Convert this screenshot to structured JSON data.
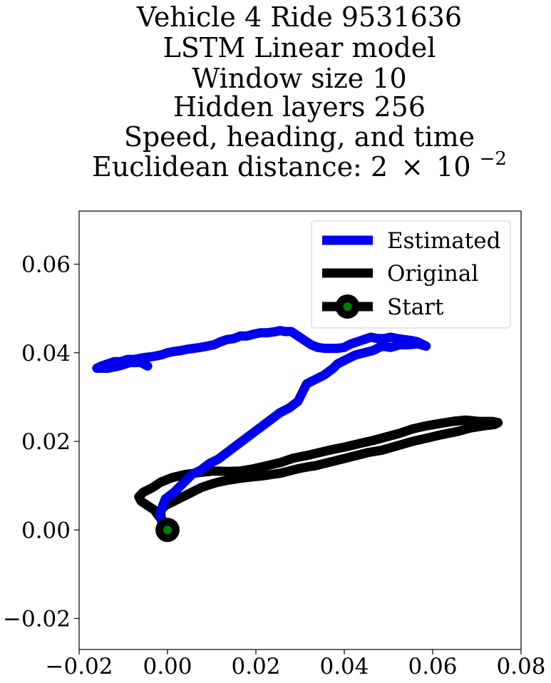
{
  "chart_data": {
    "type": "line",
    "title_lines": [
      "Vehicle 4 Ride 9531636",
      "LSTM Linear model",
      "Window size 10",
      "Hidden layers 256",
      "Speed, heading, and time"
    ],
    "title_last_prefix": "Euclidean distance: 2",
    "title_last_times": "×",
    "title_last_base": "10",
    "title_last_exponent": "−2",
    "xlabel": "",
    "ylabel": "",
    "xlim": [
      -0.02,
      0.08
    ],
    "ylim": [
      -0.027,
      0.072
    ],
    "xticks": [
      -0.02,
      0.0,
      0.02,
      0.04,
      0.06,
      0.08
    ],
    "xtick_labels": [
      "−0.02",
      "0.00",
      "0.02",
      "0.04",
      "0.06",
      "0.08"
    ],
    "yticks": [
      -0.02,
      0.0,
      0.02,
      0.04,
      0.06
    ],
    "ytick_labels": [
      "−0.02",
      "0.00",
      "0.02",
      "0.04",
      "0.06"
    ],
    "grid": false,
    "legend_position": "top-right",
    "series": [
      {
        "name": "Estimated",
        "color": "#0000ee",
        "x": [
          0.0,
          -0.0012,
          -0.0018,
          -0.0005,
          0.0015,
          0.0035,
          0.0055,
          0.0075,
          0.0095,
          0.0115,
          0.0135,
          0.0155,
          0.0175,
          0.0195,
          0.0215,
          0.0235,
          0.0255,
          0.0275,
          0.0295,
          0.0315,
          0.0335,
          0.0355,
          0.0375,
          0.0385,
          0.0395,
          0.0405,
          0.0425,
          0.0445,
          0.0465,
          0.0485,
          0.0505,
          0.0525,
          0.0545,
          0.0565,
          0.0575,
          0.0585,
          0.0565,
          0.055,
          0.0535,
          0.052,
          0.0505,
          0.049,
          0.0475,
          0.046,
          0.0445,
          0.043,
          0.0415,
          0.04,
          0.0385,
          0.037,
          0.0355,
          0.034,
          0.0325,
          0.031,
          0.0295,
          0.028,
          0.0265,
          0.0255,
          0.024,
          0.0225,
          0.021,
          0.0195,
          0.018,
          0.0165,
          0.015,
          0.0135,
          0.012,
          0.0105,
          0.009,
          0.0075,
          0.006,
          0.0045,
          0.003,
          0.0015,
          0.0,
          -0.0015,
          -0.003,
          -0.0045,
          -0.006,
          -0.0075,
          -0.009,
          -0.0105,
          -0.012,
          -0.0135,
          -0.015,
          -0.016,
          -0.0135,
          -0.011,
          -0.0085,
          -0.006,
          -0.0045
        ],
        "y": [
          0.0,
          0.0015,
          0.0035,
          0.007,
          0.0085,
          0.0105,
          0.0125,
          0.0135,
          0.015,
          0.016,
          0.0175,
          0.019,
          0.0205,
          0.022,
          0.0235,
          0.025,
          0.0265,
          0.0275,
          0.029,
          0.033,
          0.034,
          0.035,
          0.0365,
          0.0375,
          0.038,
          0.0385,
          0.0395,
          0.04,
          0.0405,
          0.0415,
          0.0412,
          0.0418,
          0.0418,
          0.042,
          0.0418,
          0.0415,
          0.0425,
          0.0428,
          0.043,
          0.0432,
          0.0435,
          0.0432,
          0.0432,
          0.0435,
          0.043,
          0.0425,
          0.042,
          0.0412,
          0.041,
          0.041,
          0.041,
          0.0412,
          0.0418,
          0.0428,
          0.0438,
          0.0448,
          0.0448,
          0.045,
          0.0447,
          0.0445,
          0.0445,
          0.0442,
          0.0438,
          0.0438,
          0.0432,
          0.043,
          0.0425,
          0.0418,
          0.0415,
          0.0412,
          0.041,
          0.0408,
          0.0405,
          0.0403,
          0.04,
          0.0395,
          0.0392,
          0.039,
          0.0388,
          0.0385,
          0.0385,
          0.038,
          0.038,
          0.0375,
          0.037,
          0.0365,
          0.0365,
          0.037,
          0.0378,
          0.0378,
          0.037
        ]
      },
      {
        "name": "Original",
        "color": "#000000",
        "x": [
          0.0,
          -0.0015,
          -0.003,
          -0.0045,
          -0.006,
          -0.0065,
          -0.0055,
          -0.0035,
          -0.0015,
          0.001,
          0.004,
          0.0075,
          0.0105,
          0.0135,
          0.0165,
          0.0195,
          0.0225,
          0.0255,
          0.0285,
          0.0315,
          0.0345,
          0.0375,
          0.0405,
          0.0435,
          0.0465,
          0.0495,
          0.0525,
          0.0555,
          0.0585,
          0.0615,
          0.0645,
          0.0675,
          0.0705,
          0.0735,
          0.0748,
          0.074,
          0.0715,
          0.0685,
          0.0655,
          0.062,
          0.059,
          0.0555,
          0.052,
          0.0485,
          0.0455,
          0.0435,
          0.0415,
          0.0395,
          0.0375,
          0.0355,
          0.0335,
          0.0315,
          0.0295,
          0.0275,
          0.0255,
          0.0235,
          0.0215,
          0.0195,
          0.0175,
          0.0155,
          0.0135,
          0.0115,
          0.0095,
          0.0075,
          0.0055,
          0.0035,
          0.0015,
          -0.0005,
          -0.0015,
          -0.0015,
          -0.001,
          -0.0005,
          0.0
        ],
        "y": [
          0.0,
          0.0025,
          0.0045,
          0.0055,
          0.0065,
          0.0075,
          0.0085,
          0.0095,
          0.0108,
          0.0118,
          0.0125,
          0.013,
          0.0133,
          0.0132,
          0.0133,
          0.0138,
          0.0145,
          0.0152,
          0.0162,
          0.0168,
          0.0175,
          0.0182,
          0.0188,
          0.0195,
          0.0202,
          0.021,
          0.0218,
          0.0228,
          0.0235,
          0.024,
          0.0245,
          0.0248,
          0.0245,
          0.0245,
          0.0242,
          0.0238,
          0.0235,
          0.023,
          0.0222,
          0.0215,
          0.0208,
          0.02,
          0.019,
          0.018,
          0.0175,
          0.017,
          0.0165,
          0.016,
          0.0155,
          0.015,
          0.0145,
          0.0142,
          0.0138,
          0.0133,
          0.0128,
          0.0125,
          0.0122,
          0.012,
          0.0118,
          0.0115,
          0.0112,
          0.0108,
          0.0102,
          0.0095,
          0.0085,
          0.0075,
          0.0065,
          0.0055,
          0.0045,
          0.003,
          0.0018,
          0.0008,
          0.0
        ]
      },
      {
        "name": "Start",
        "color": "#000000",
        "marker_color": "#008000",
        "x": [
          0.0
        ],
        "y": [
          0.0
        ]
      }
    ]
  }
}
